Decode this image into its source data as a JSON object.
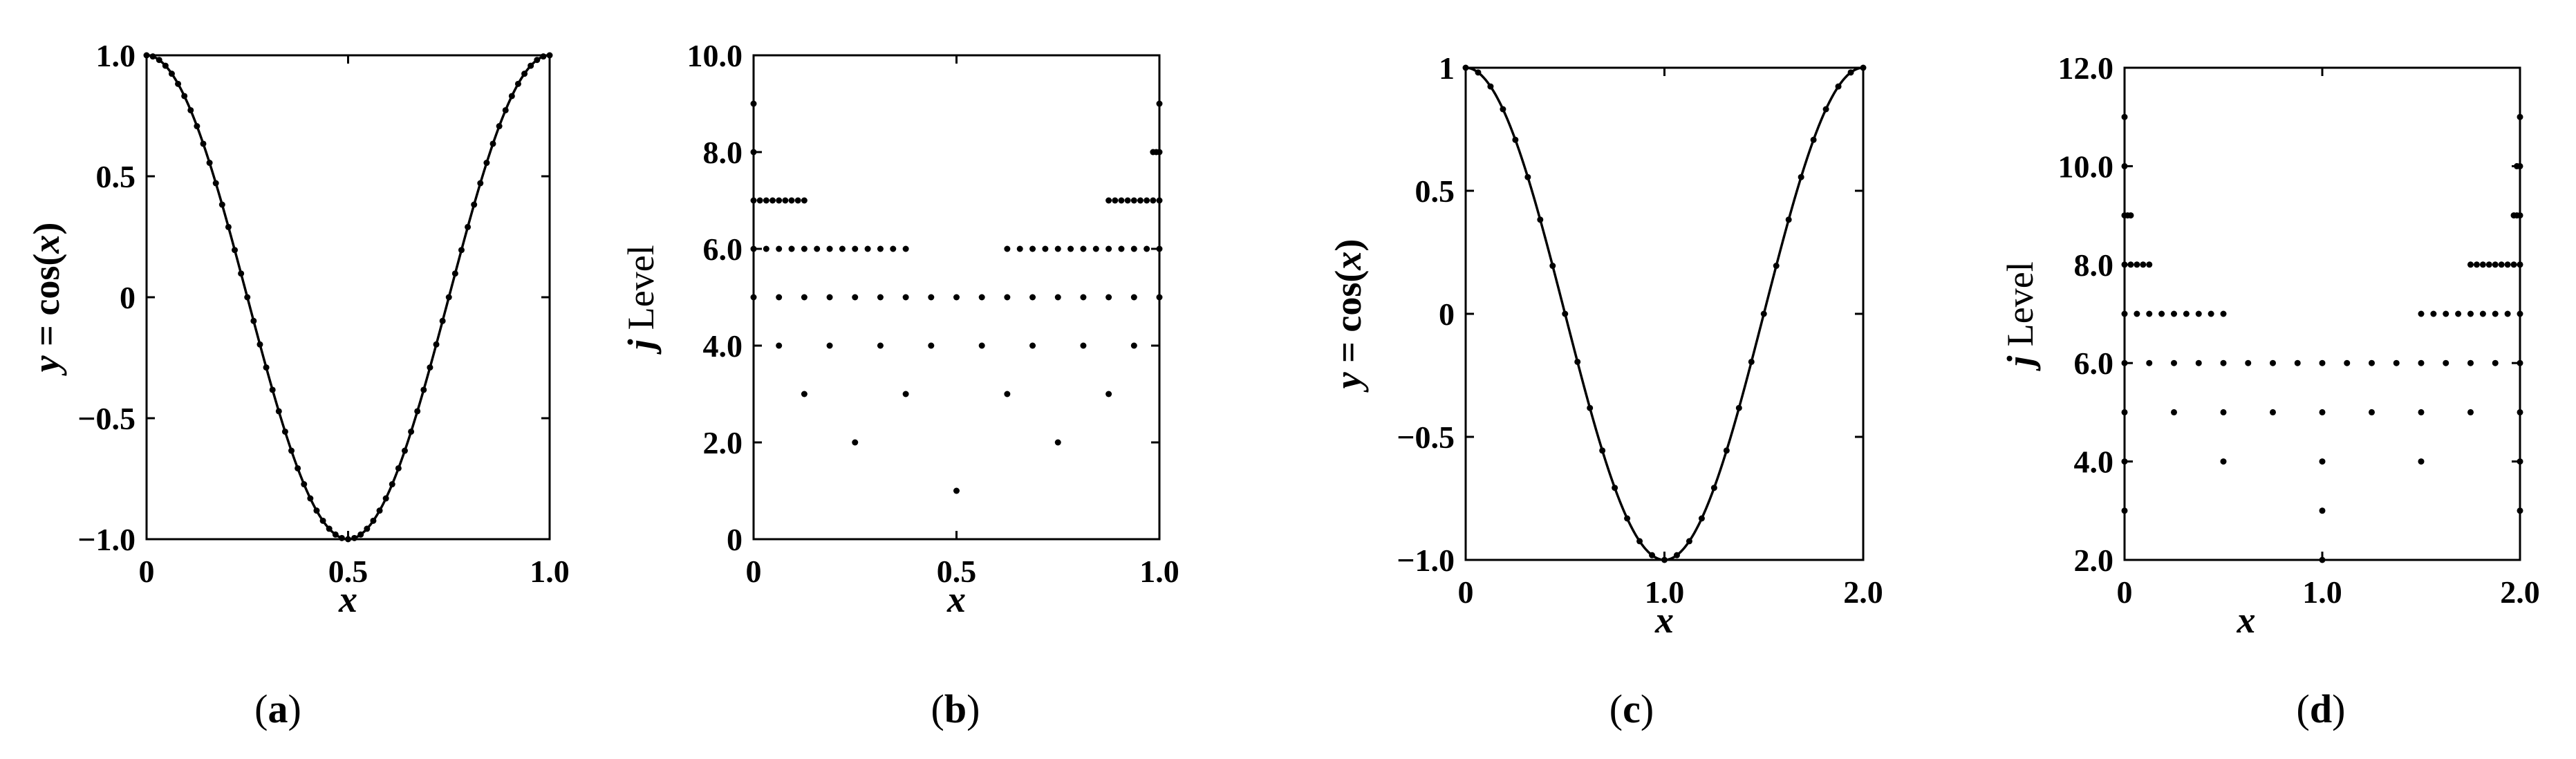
{
  "chart_data": [
    {
      "panel": "(a)",
      "panel_letter": "a",
      "type": "line",
      "function": "cos(2*pi*x)",
      "domain": [
        0,
        1.0
      ],
      "sample_step": 0.015625,
      "xlabel": "x",
      "ylabel_var": "y",
      "ylabel_rest": " = cos(",
      "ylabel_arg": "x",
      "ylabel_close": ")",
      "xlim": [
        0,
        1.0
      ],
      "ylim": [
        -1.0,
        1.0
      ],
      "xticks": [
        0,
        0.5,
        1.0
      ],
      "xtick_labels": [
        "0",
        "0.5",
        "1.0"
      ],
      "yticks": [
        -1.0,
        -0.5,
        0,
        0.5,
        1.0
      ],
      "ytick_labels": [
        "−1.0",
        "−0.5",
        "0",
        "0.5",
        "1.0"
      ]
    },
    {
      "panel": "(b)",
      "panel_letter": "b",
      "type": "scatter",
      "xlabel": "x",
      "ylabel_j": "j",
      "ylabel_rest": " Level",
      "xlim": [
        0,
        1.0
      ],
      "ylim": [
        0,
        10.0
      ],
      "xticks": [
        0,
        0.5,
        1.0
      ],
      "xtick_labels": [
        "0",
        "0.5",
        "1.0"
      ],
      "yticks": [
        0,
        2.0,
        4.0,
        6.0,
        8.0,
        10.0
      ],
      "ytick_labels": [
        "0",
        "2.0",
        "4.0",
        "6.0",
        "8.0",
        "10.0"
      ],
      "levels": [
        {
          "level": 1,
          "x": [
            0.5
          ]
        },
        {
          "level": 2,
          "x": [
            0.25,
            0.75
          ]
        },
        {
          "level": 3,
          "x": [
            0.125,
            0.375,
            0.625,
            0.875
          ]
        },
        {
          "level": 4,
          "x": [
            0.0625,
            0.1875,
            0.3125,
            0.4375,
            0.5625,
            0.6875,
            0.8125,
            0.9375
          ]
        },
        {
          "level": 5,
          "range": [
            0,
            1.0
          ],
          "step": 0.0625
        },
        {
          "level": 6,
          "ranges": [
            [
              0,
              0.375
            ],
            [
              0.625,
              1.0
            ]
          ],
          "step": 0.03125
        },
        {
          "level": 7,
          "ranges": [
            [
              0,
              0.125
            ],
            [
              0.875,
              1.0
            ]
          ],
          "step": 0.015625
        },
        {
          "level": 8,
          "x": [
            0,
            0.984375,
            0.9921875,
            1.0
          ]
        },
        {
          "level": 9,
          "x": [
            0,
            1.0
          ]
        }
      ]
    },
    {
      "panel": "(c)",
      "panel_letter": "c",
      "type": "line",
      "function": "cos(pi*x)",
      "domain": [
        0,
        2.0
      ],
      "sample_step": 0.0625,
      "xlabel": "x",
      "ylabel_var": "y",
      "ylabel_rest": " = cos(",
      "ylabel_arg": "x",
      "ylabel_close": ")",
      "xlim": [
        0,
        2.0
      ],
      "ylim": [
        -1.0,
        1.0
      ],
      "xticks": [
        0,
        1.0,
        2.0
      ],
      "xtick_labels": [
        "0",
        "1.0",
        "2.0"
      ],
      "yticks": [
        -1.0,
        -0.5,
        0,
        0.5,
        1.0
      ],
      "ytick_labels": [
        "−1.0",
        "−0.5",
        "0",
        "0.5",
        "1"
      ]
    },
    {
      "panel": "(d)",
      "panel_letter": "d",
      "type": "scatter",
      "xlabel": "x",
      "ylabel_j": "j",
      "ylabel_rest": " Level",
      "xlim": [
        0,
        2.0
      ],
      "ylim": [
        2.0,
        12.0
      ],
      "xticks": [
        0,
        1.0,
        2.0
      ],
      "xtick_labels": [
        "0",
        "1.0",
        "2.0"
      ],
      "yticks": [
        2.0,
        4.0,
        6.0,
        8.0,
        10.0,
        12.0
      ],
      "ytick_labels": [
        "2.0",
        "4.0",
        "6.0",
        "8.0",
        "10.0",
        "12.0"
      ],
      "levels": [
        {
          "level": 2,
          "x": [
            1.0
          ]
        },
        {
          "level": 3,
          "x": [
            0,
            1.0,
            2.0
          ]
        },
        {
          "level": 4,
          "x": [
            0,
            0.5,
            1.0,
            1.5,
            2.0
          ]
        },
        {
          "level": 5,
          "range": [
            0,
            2.0
          ],
          "step": 0.25
        },
        {
          "level": 6,
          "range": [
            0,
            2.0
          ],
          "step": 0.125
        },
        {
          "level": 7,
          "ranges": [
            [
              0,
              0.5
            ],
            [
              1.5,
              2.0
            ]
          ],
          "step": 0.0625
        },
        {
          "level": 8,
          "ranges": [
            [
              0,
              0.125
            ],
            [
              1.75,
              2.0
            ]
          ],
          "step": 0.03125
        },
        {
          "level": 9,
          "x": [
            0,
            0.015625,
            0.03125,
            1.96875,
            1.984375,
            2.0
          ]
        },
        {
          "level": 10,
          "x": [
            0,
            1.984375,
            2.0
          ]
        },
        {
          "level": 11,
          "x": [
            0,
            2.0
          ]
        }
      ]
    }
  ]
}
